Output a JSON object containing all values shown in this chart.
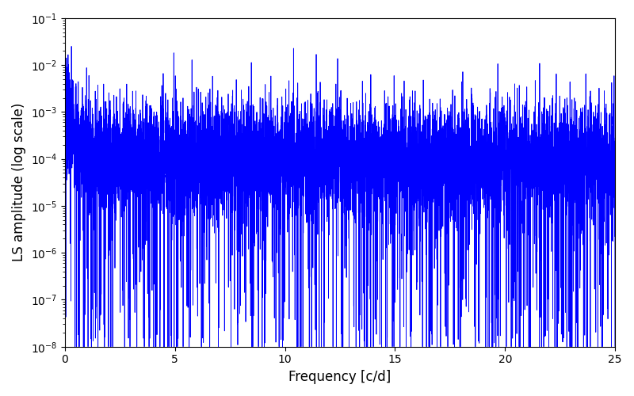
{
  "title": "",
  "xlabel": "Frequency [c/d]",
  "ylabel": "LS amplitude (log scale)",
  "xlim": [
    0,
    25
  ],
  "ylim": [
    1e-08,
    0.1
  ],
  "yscale": "log",
  "line_color": "#0000ff",
  "line_width": 0.6,
  "figsize": [
    8.0,
    5.0
  ],
  "dpi": 100,
  "freq_max": 25.0,
  "n_points": 8000,
  "seed": 7,
  "peak_freq": 0.3,
  "peak_amp": 0.025,
  "base_log_mean": -4.0,
  "base_log_std": 0.6,
  "background_color": "#ffffff"
}
